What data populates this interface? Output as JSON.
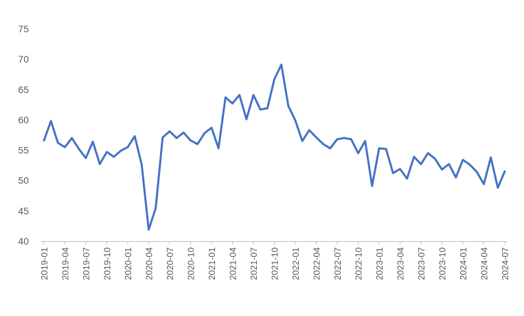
{
  "chart_data": {
    "type": "line",
    "title": "",
    "xlabel": "",
    "ylabel": "",
    "ylim": [
      40,
      75
    ],
    "yticks": [
      "40",
      "45",
      "50",
      "55",
      "60",
      "65",
      "70",
      "75"
    ],
    "grid": false,
    "legend": "none",
    "color": "#4472C4",
    "xtick_labels": [
      "2019-01",
      "2019-04",
      "2019-07",
      "2019-10",
      "2020-01",
      "2020-04",
      "2020-07",
      "2020-10",
      "2021-01",
      "2021-04",
      "2021-07",
      "2021-10",
      "2022-01",
      "2022-04",
      "2022-07",
      "2022-10",
      "2023-01",
      "2023-04",
      "2023-07",
      "2023-10",
      "2024-01",
      "2024-04",
      "2024-07"
    ],
    "x": [
      "2019-01",
      "2019-02",
      "2019-03",
      "2019-04",
      "2019-05",
      "2019-06",
      "2019-07",
      "2019-08",
      "2019-09",
      "2019-10",
      "2019-11",
      "2019-12",
      "2020-01",
      "2020-02",
      "2020-03",
      "2020-04",
      "2020-05",
      "2020-06",
      "2020-07",
      "2020-08",
      "2020-09",
      "2020-10",
      "2020-11",
      "2020-12",
      "2021-01",
      "2021-02",
      "2021-03",
      "2021-04",
      "2021-05",
      "2021-06",
      "2021-07",
      "2021-08",
      "2021-09",
      "2021-10",
      "2021-11",
      "2021-12",
      "2022-01",
      "2022-02",
      "2022-03",
      "2022-04",
      "2022-05",
      "2022-06",
      "2022-07",
      "2022-08",
      "2022-09",
      "2022-10",
      "2022-11",
      "2022-12",
      "2023-01",
      "2023-02",
      "2023-03",
      "2023-04",
      "2023-05",
      "2023-06",
      "2023-07",
      "2023-08",
      "2023-09",
      "2023-10",
      "2023-11",
      "2023-12",
      "2024-01",
      "2024-02",
      "2024-03",
      "2024-04",
      "2024-05",
      "2024-06",
      "2024-07"
    ],
    "series": [
      {
        "values": [
          56.6,
          59.8,
          56.2,
          55.5,
          57.0,
          55.2,
          53.7,
          56.4,
          52.7,
          54.7,
          53.9,
          54.9,
          55.5,
          57.3,
          52.6,
          41.9,
          45.4,
          57.1,
          58.1,
          57.0,
          57.9,
          56.6,
          56.0,
          57.8,
          58.7,
          55.3,
          63.7,
          62.7,
          64.1,
          60.1,
          64.1,
          61.7,
          61.9,
          66.7,
          69.1,
          62.3,
          59.9,
          56.5,
          58.3,
          57.1,
          56.0,
          55.3,
          56.8,
          57.0,
          56.8,
          54.5,
          56.5,
          49.1,
          55.3,
          55.2,
          51.2,
          51.9,
          50.3,
          53.9,
          52.7,
          54.5,
          53.6,
          51.8,
          52.7,
          50.5,
          53.4,
          52.6,
          51.4,
          49.4,
          53.8,
          48.8,
          51.5
        ]
      }
    ]
  }
}
